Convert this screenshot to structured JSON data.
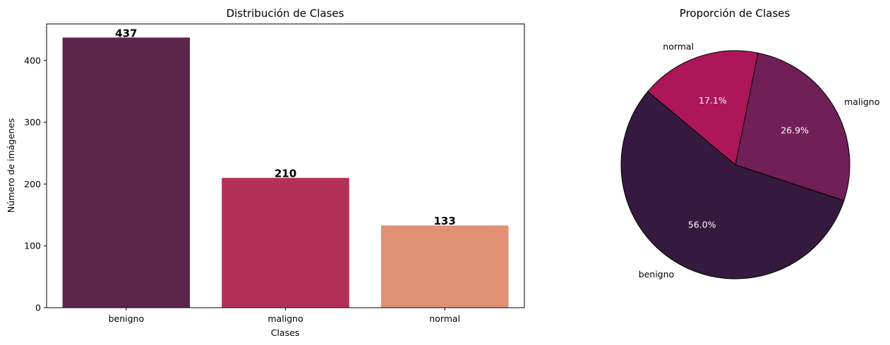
{
  "chart_data": [
    {
      "type": "bar",
      "title": "Distribución de Clases",
      "xlabel": "Clases",
      "ylabel": "Número de imágenes",
      "categories": [
        "benigno",
        "maligno",
        "normal"
      ],
      "values": [
        437,
        210,
        133
      ],
      "data_labels": [
        "437",
        "210",
        "133"
      ],
      "yticks": [
        0,
        100,
        200,
        300,
        400
      ],
      "ytick_labels": [
        "0",
        "100",
        "200",
        "300",
        "400"
      ],
      "ylim": [
        0,
        459
      ],
      "colors": [
        "#5c264c",
        "#b33058",
        "#e19073"
      ],
      "grid": false
    },
    {
      "type": "pie",
      "title": "Proporción de Clases",
      "labels": [
        "benigno",
        "maligno",
        "normal"
      ],
      "values": [
        437,
        210,
        133
      ],
      "percent_labels": [
        "56.0%",
        "26.9%",
        "17.1%"
      ],
      "colors": [
        "#35193e",
        "#701f57",
        "#ad1759"
      ],
      "edge_color": "#000000"
    }
  ]
}
